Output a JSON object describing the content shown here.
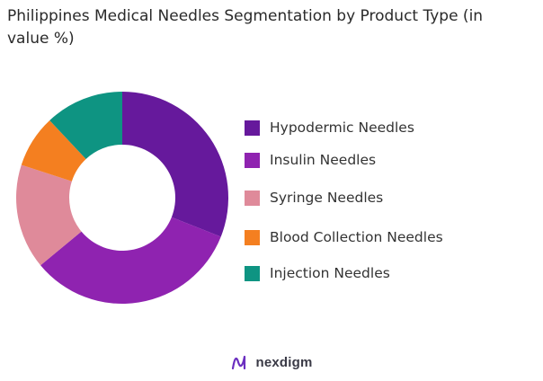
{
  "chart_data": {
    "type": "pie",
    "title": "Philippines Medical Needles Segmentation by Product Type (in value %)",
    "categories": [
      "Hypodermic Needles",
      "Insulin Needles",
      "Syringe Needles",
      "Blood Collection Needles",
      "Injection Needles"
    ],
    "values": [
      31,
      33,
      16,
      8,
      12
    ],
    "colors": [
      "#66199c",
      "#8f23b0",
      "#df8a9a",
      "#f47f20",
      "#0e9482"
    ],
    "legend_position": "right",
    "donut": true
  },
  "brand": {
    "name": "nexdigm",
    "logo_icon": "nexdigm-logo-icon"
  }
}
